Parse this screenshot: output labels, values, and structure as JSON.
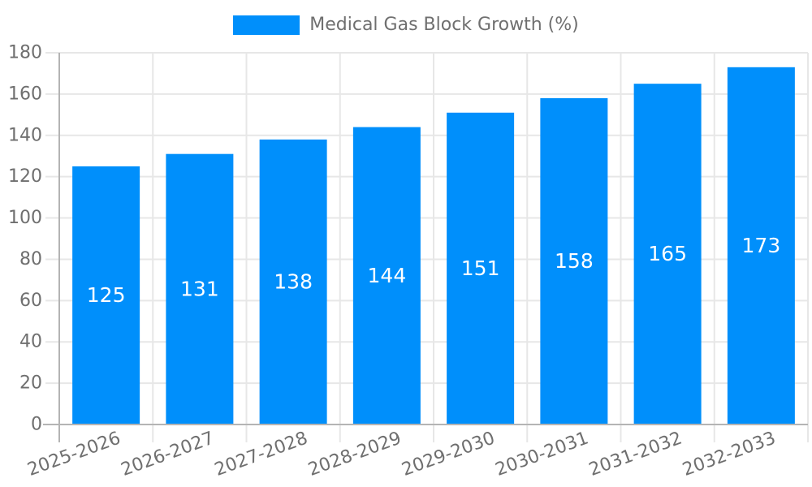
{
  "legend": {
    "label": "Medical Gas Block Growth (%)"
  },
  "chart_data": {
    "type": "bar",
    "title": "Medical Gas Block Growth (%)",
    "categories": [
      "2025-2026",
      "2026-2027",
      "2027-2028",
      "2028-2029",
      "2029-2030",
      "2030-2031",
      "2031-2032",
      "2032-2033"
    ],
    "values": [
      125,
      131,
      138,
      144,
      151,
      158,
      165,
      173
    ],
    "xlabel": "",
    "ylabel": "",
    "ylim": [
      0,
      180
    ],
    "yticks": [
      0,
      20,
      40,
      60,
      80,
      100,
      120,
      140,
      160,
      180
    ],
    "grid": true,
    "legend_position": "top",
    "x_label_rotation_deg": -20,
    "colors": {
      "bar": "#008FFB",
      "value_label": "#ffffff",
      "axis_text": "#6f6f6f",
      "grid_line": "#e7e7e7",
      "axis_line": "#b4b4b4"
    }
  }
}
